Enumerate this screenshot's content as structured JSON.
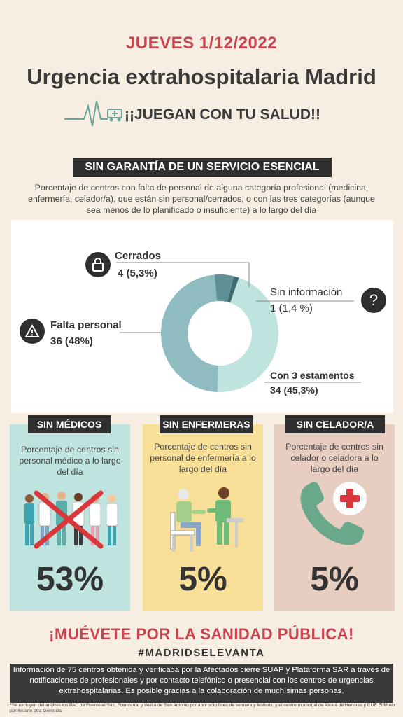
{
  "header": {
    "date": "JUEVES 1/12/2022",
    "title": "Urgencia extrahospitalaria Madrid",
    "slogan": "¡¡JUEGAN CON TU SALUD!!"
  },
  "section": {
    "title": "SIN GARANTÍA DE UN SERVICIO  ESENCIAL",
    "description": "Porcentaje de centros con falta de personal de alguna categoría profesional (medicina, enfermería, celador/a), que están sin personal/cerrados, o con las tres categorías (aunque sea menos de lo planificado o insuficiente) a lo largo del día"
  },
  "chart_data": {
    "type": "pie",
    "donut": true,
    "labels": [
      "Con 3 estamentos",
      "Falta personal",
      "Cerrados",
      "Sin información"
    ],
    "counts": [
      34,
      36,
      4,
      1
    ],
    "values": [
      45.3,
      48,
      5.3,
      1.4
    ],
    "value_labels": [
      "34 (45,3%)",
      "36 (48%)",
      "4 (5,3%)",
      "1 (1,4 %)"
    ],
    "colors": [
      "#bfe4df",
      "#8fbcc1",
      "#5f8f97",
      "#3e6a72"
    ],
    "icons": {
      "Cerrados": "lock-icon",
      "Falta personal": "warning-icon",
      "Sin información": "question-icon"
    }
  },
  "cards": [
    {
      "title": "SIN MÉDICOS",
      "description": "Porcentaje de centros sin personal médico a lo largo del día",
      "percent": "53%",
      "value": 53,
      "bg": "#bfe4df",
      "icon": "crossed-doctors-illustration"
    },
    {
      "title": "SIN ENFERMERAS",
      "description": "Porcentaje de centros sin personal de enfermería a lo largo del día",
      "percent": "5%",
      "value": 5,
      "bg": "#f8df97",
      "icon": "nurse-patient-illustration"
    },
    {
      "title": "SIN CELADOR/A",
      "description": "Porcentaje de centros sin celador o celadora a lo largo del día",
      "percent": "5%",
      "value": 5,
      "bg": "#e8cdc1",
      "icon": "phone-medical-icon"
    }
  ],
  "cta": "¡MUÉVETE POR LA SANIDAD PÚBLICA!",
  "hashtag": "#MADRIDSELEVANTA",
  "footer": "Información de 75 centros obtenida y verificada por la Afectados cierre SUAP y Plataforma SAR a través de notificaciones de profesionales y por contacto telefónico o presencial con los centros de urgencias extrahospitalarias. Es posible gracias a la colaboración de muchísimas personas.",
  "footnote": "*Se excluyen del análisis los PAC de Fuente el Saz, Fuencarral y Velilla de San Antonio por abrir solo fines de semana y festivos, y el centro municipal de Alcalá de Henares y CUE El Molar por llevarlo otra Gerencia",
  "colors": {
    "background": "#f6eee2",
    "accent_red": "#c9444f",
    "dark": "#2f2f2f"
  }
}
